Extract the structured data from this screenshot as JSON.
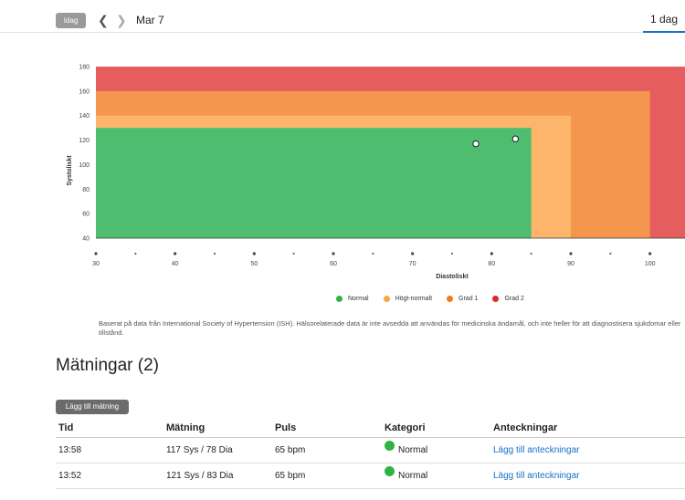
{
  "header": {
    "today_label": "Idag",
    "date_label": "Mar 7",
    "period_tab": "1 dag"
  },
  "colors": {
    "normal": "#4fbd6f",
    "high_normal": "#fdb46b",
    "grade1": "#f4964d",
    "grade2": "#e65d5d",
    "point": "#ffffff",
    "accent": "#1a73c8"
  },
  "chart_data": {
    "type": "scatter",
    "title": "",
    "xlabel": "Diastoliskt",
    "ylabel": "Systoliskt",
    "xlim": [
      30,
      105
    ],
    "ylim": [
      40,
      180
    ],
    "x_ticks": [
      30,
      40,
      50,
      60,
      70,
      80,
      90,
      100
    ],
    "y_ticks": [
      40,
      60,
      80,
      100,
      120,
      140,
      160,
      180
    ],
    "zones": [
      {
        "name": "Grad 2",
        "dia_max": 105,
        "sys_max": 180,
        "color_key": "grade2"
      },
      {
        "name": "Grad 1",
        "dia_max": 100,
        "sys_max": 160,
        "color_key": "grade1"
      },
      {
        "name": "Högt-normalt",
        "dia_max": 90,
        "sys_max": 140,
        "color_key": "high_normal"
      },
      {
        "name": "Normal",
        "dia_max": 85,
        "sys_max": 130,
        "color_key": "normal"
      }
    ],
    "points": [
      {
        "dia": 78,
        "sys": 117
      },
      {
        "dia": 83,
        "sys": 121
      }
    ],
    "legend": [
      {
        "label": "Normal",
        "color": "#2fb344"
      },
      {
        "label": "Högt-normalt",
        "color": "#f9a545"
      },
      {
        "label": "Grad 1",
        "color": "#ee7a22"
      },
      {
        "label": "Grad 2",
        "color": "#d92b2b"
      }
    ],
    "legend_position": "bottom-center"
  },
  "disclaimer": "Baserat på data från International Society of Hypertension (ISH). Hälsorelaterade data är inte avsedda att användas för medicinska ändamål, och inte heller för att diagnostisera sjukdomar eller tillstånd.",
  "measurements": {
    "title": "Mätningar (2)",
    "add_button": "Lägg till mätning",
    "columns": [
      "Tid",
      "Mätning",
      "Puls",
      "Kategori",
      "Anteckningar"
    ],
    "rows": [
      {
        "time": "13:58",
        "reading": "117 Sys / 78 Dia",
        "pulse": "65 bpm",
        "category": "Normal",
        "notes": "Lägg till anteckningar"
      },
      {
        "time": "13:52",
        "reading": "121 Sys / 83 Dia",
        "pulse": "65 bpm",
        "category": "Normal",
        "notes": "Lägg till anteckningar"
      }
    ]
  }
}
